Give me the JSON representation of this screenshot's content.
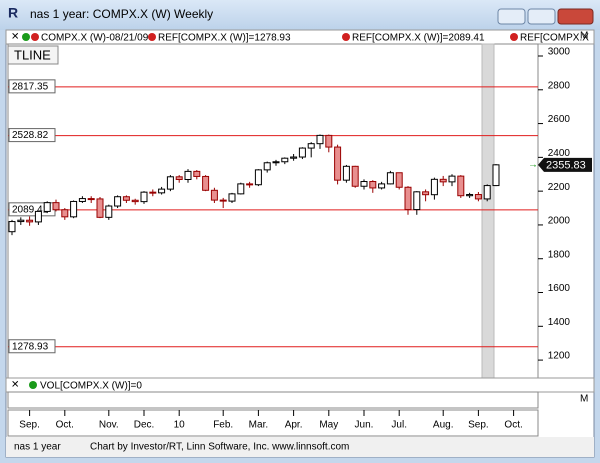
{
  "chart_data": {
    "type": "candlestick",
    "title": "nas 1 year: COMPX.X (W) Weekly",
    "header_items": [
      "COMPX.X (W)-08/21/09",
      "REF[COMPX.X (W)]=1278.93",
      "REF[COMPX.X (W)]=2089.41",
      "REF[COMPX.X"
    ],
    "panel_button": "M",
    "tool_label": "TLINE",
    "volume_label": "VOL[COMPX.X (W)]=0",
    "footer_left": "nas 1 year",
    "footer_credit": "Chart by Investor/RT, Linn Software, Inc. www.linnsoft.com",
    "categories": [
      null,
      null,
      "Sep.",
      null,
      null,
      null,
      "Oct.",
      null,
      null,
      null,
      null,
      "Nov.",
      null,
      null,
      null,
      "Dec.",
      null,
      null,
      null,
      "10",
      null,
      null,
      null,
      null,
      "Feb.",
      null,
      null,
      null,
      "Mar.",
      null,
      null,
      null,
      "Apr.",
      null,
      null,
      null,
      "May",
      null,
      null,
      null,
      "Jun.",
      null,
      null,
      null,
      "Jul.",
      null,
      null,
      null,
      null,
      "Aug.",
      null,
      null,
      null,
      "Sep.",
      null,
      null,
      null,
      "Oct."
    ],
    "open": [
      1960,
      2020,
      2028,
      2018,
      2080,
      2132,
      2090,
      2048,
      2139,
      2156,
      2154,
      2045,
      2112,
      2167,
      2146,
      2138,
      2194,
      2190,
      2212,
      2285,
      2269,
      2317,
      2287,
      2205,
      2147,
      2141,
      2184,
      2243,
      2238,
      2326,
      2368,
      2374,
      2395,
      2402,
      2455,
      2481,
      2530,
      2461,
      2265,
      2347,
      2229,
      2257,
      2219,
      2243,
      2309,
      2223,
      2091,
      2196,
      2179,
      2270,
      2255,
      2289,
      2173,
      2180,
      2154,
      2233,
      null,
      null
    ],
    "high": [
      2030,
      2045,
      2050,
      2085,
      2140,
      2150,
      2100,
      2145,
      2170,
      2170,
      2165,
      2120,
      2175,
      2175,
      2155,
      2200,
      2210,
      2225,
      2295,
      2295,
      2330,
      2325,
      2295,
      2220,
      2160,
      2190,
      2250,
      2255,
      2330,
      2375,
      2385,
      2400,
      2420,
      2460,
      2490,
      2535,
      2535,
      2475,
      2355,
      2350,
      2270,
      2265,
      2255,
      2320,
      2310,
      2230,
      2200,
      2210,
      2280,
      2290,
      2300,
      2295,
      2190,
      2195,
      2240,
      2360,
      null,
      null
    ],
    "low": [
      1940,
      2000,
      1995,
      2000,
      2070,
      2080,
      2030,
      2040,
      2130,
      2130,
      2040,
      2030,
      2100,
      2130,
      2120,
      2125,
      2170,
      2180,
      2200,
      2250,
      2250,
      2270,
      2200,
      2130,
      2100,
      2130,
      2180,
      2220,
      2230,
      2310,
      2350,
      2360,
      2380,
      2390,
      2400,
      2450,
      2430,
      2240,
      2250,
      2220,
      2210,
      2190,
      2210,
      2240,
      2210,
      2060,
      2060,
      2140,
      2150,
      2230,
      2230,
      2160,
      2160,
      2140,
      2140,
      2230,
      null,
      null
    ],
    "close": [
      2020,
      2028,
      2018,
      2080,
      2132,
      2090,
      2048,
      2139,
      2156,
      2154,
      2045,
      2112,
      2167,
      2146,
      2138,
      2194,
      2190,
      2212,
      2285,
      2269,
      2317,
      2287,
      2205,
      2147,
      2141,
      2184,
      2243,
      2238,
      2326,
      2368,
      2374,
      2395,
      2402,
      2455,
      2481,
      2530,
      2461,
      2265,
      2347,
      2229,
      2257,
      2219,
      2243,
      2309,
      2223,
      2091,
      2196,
      2179,
      2270,
      2255,
      2289,
      2173,
      2180,
      2154,
      2233,
      2355.83,
      null,
      null
    ],
    "up_color": "#ffffff",
    "down_color": "#e88f8f",
    "reference_lines": [
      2817.35,
      2528.82,
      2089.41,
      1278.93
    ],
    "ref_color": "#e01c1c",
    "ylim": [
      1094,
      3071
    ],
    "yticks": [
      1200,
      1400,
      1600,
      1800,
      2000,
      2200,
      2400,
      2600,
      2800,
      3000
    ]
  }
}
